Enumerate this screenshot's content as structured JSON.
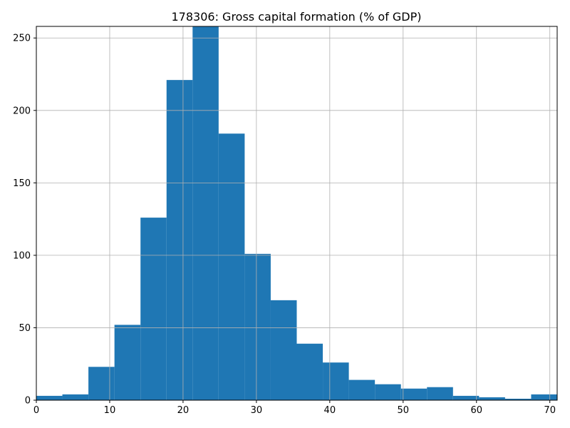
{
  "chart_data": {
    "type": "bar",
    "title": "178306: Gross capital formation (% of GDP)",
    "xlabel": "",
    "ylabel": "",
    "xlim": [
      0,
      71
    ],
    "ylim": [
      0,
      258
    ],
    "grid": true,
    "bar_color": "#1f77b4",
    "grid_color": "#b0b0b0",
    "bin_edges": [
      0,
      3.55,
      7.1,
      10.65,
      14.2,
      17.75,
      21.3,
      24.85,
      28.4,
      31.95,
      35.5,
      39.05,
      42.6,
      46.15,
      49.7,
      53.25,
      56.8,
      60.35,
      63.9,
      67.45,
      71.0
    ],
    "values": [
      3,
      4,
      23,
      52,
      126,
      221,
      258,
      184,
      101,
      69,
      39,
      26,
      14,
      11,
      8,
      9,
      3,
      2,
      1,
      4
    ],
    "x_ticks": [
      0,
      10,
      20,
      30,
      40,
      50,
      60,
      70
    ],
    "x_tick_labels": [
      "0",
      "10",
      "20",
      "30",
      "40",
      "50",
      "60",
      "70"
    ],
    "y_ticks": [
      0,
      50,
      100,
      150,
      200,
      250
    ],
    "y_tick_labels": [
      "0",
      "50",
      "100",
      "150",
      "200",
      "250"
    ]
  }
}
